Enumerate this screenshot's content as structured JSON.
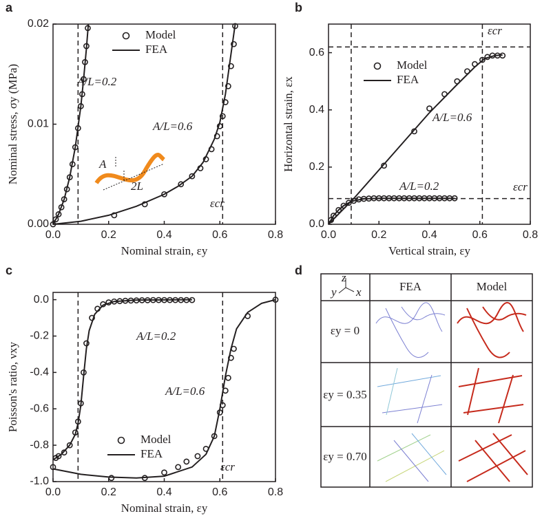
{
  "panels": [
    "a",
    "b",
    "c",
    "d"
  ],
  "chart_data": [
    {
      "type": "line",
      "xlabel": "Nominal strain, εy",
      "ylabel": "Nominal stress, σy (MPa)",
      "xlim": [
        0,
        0.8
      ],
      "xticks": [
        {
          "value": 0,
          "label": "0.0"
        },
        0.2,
        0.4,
        0.6,
        0.8
      ],
      "ylim": [
        0,
        0.02
      ],
      "yticks": [
        {
          "value": 0,
          "label": "0.00"
        },
        0.01,
        0.02
      ],
      "vlines": [
        0.09,
        0.61
      ],
      "hlines": [],
      "ref_labels": [
        "εcr"
      ],
      "annotations": [
        "A/L=0.2",
        "A/L=0.6"
      ],
      "inset_labels": [
        "A",
        "2L"
      ],
      "series": [
        {
          "name": "Model",
          "marker": "circle",
          "color": "#231f20",
          "curves": [
            {
              "x": [
                0,
                0.01,
                0.02,
                0.03,
                0.04,
                0.05,
                0.06,
                0.07,
                0.08,
                0.09,
                0.1,
                0.105,
                0.11,
                0.115,
                0.12,
                0.125
              ],
              "y": [
                0,
                0.0005,
                0.001,
                0.0017,
                0.0025,
                0.0035,
                0.0047,
                0.006,
                0.0077,
                0.0096,
                0.0118,
                0.013,
                0.0145,
                0.0162,
                0.0178,
                0.0196
              ]
            },
            {
              "x": [
                0.22,
                0.33,
                0.4,
                0.46,
                0.5,
                0.53,
                0.55,
                0.57,
                0.59,
                0.6,
                0.61,
                0.62,
                0.63,
                0.64,
                0.65,
                0.655
              ],
              "y": [
                0.0009,
                0.002,
                0.003,
                0.004,
                0.0048,
                0.0056,
                0.0065,
                0.0075,
                0.0088,
                0.0098,
                0.0108,
                0.0122,
                0.0138,
                0.0158,
                0.018,
                0.0198
              ]
            }
          ]
        },
        {
          "name": "FEA",
          "marker": "line",
          "color": "#231f20",
          "curves": [
            {
              "x": [
                0,
                0.02,
                0.04,
                0.06,
                0.08,
                0.1,
                0.11,
                0.12,
                0.127
              ],
              "y": [
                0,
                0.001,
                0.0025,
                0.0047,
                0.0077,
                0.0118,
                0.0145,
                0.0175,
                0.02
              ]
            },
            {
              "x": [
                0,
                0.1,
                0.2,
                0.3,
                0.4,
                0.45,
                0.5,
                0.54,
                0.58,
                0.6,
                0.62,
                0.64,
                0.655
              ],
              "y": [
                0,
                0.0003,
                0.0009,
                0.0018,
                0.003,
                0.0038,
                0.0048,
                0.0062,
                0.0085,
                0.0102,
                0.013,
                0.017,
                0.02
              ]
            }
          ]
        }
      ]
    },
    {
      "type": "line",
      "xlabel": "Vertical strain, εy",
      "ylabel": "Horizontal strain, εx",
      "xlim": [
        0,
        0.8
      ],
      "xticks": [
        {
          "value": 0,
          "label": "0.0"
        },
        0.2,
        0.4,
        0.6,
        0.8
      ],
      "ylim": [
        0,
        0.7
      ],
      "yticks": [
        {
          "value": 0,
          "label": "0.0"
        },
        0.2,
        0.4,
        0.6
      ],
      "vlines": [
        0.09,
        0.61
      ],
      "hlines": [
        0.62,
        0.09
      ],
      "ref_labels": [
        "εcr",
        "εcr"
      ],
      "annotations": [
        "A/L=0.6",
        "A/L=0.2"
      ],
      "series": [
        {
          "name": "Model",
          "marker": "circle",
          "color": "#231f20",
          "curves": [
            {
              "x": [
                0.22,
                0.34,
                0.4,
                0.46,
                0.51,
                0.55,
                0.58,
                0.61,
                0.63,
                0.65,
                0.67,
                0.69
              ],
              "y": [
                0.205,
                0.325,
                0.405,
                0.455,
                0.5,
                0.535,
                0.56,
                0.575,
                0.585,
                0.59,
                0.59,
                0.59
              ]
            },
            {
              "x": [
                0.01,
                0.02,
                0.04,
                0.06,
                0.08,
                0.1,
                0.12,
                0.14,
                0.16,
                0.18,
                0.2,
                0.22,
                0.24,
                0.26,
                0.28,
                0.3,
                0.32,
                0.34,
                0.36,
                0.38,
                0.4,
                0.42,
                0.44,
                0.46,
                0.48,
                0.5
              ],
              "y": [
                0.015,
                0.03,
                0.05,
                0.065,
                0.075,
                0.082,
                0.087,
                0.089,
                0.09,
                0.091,
                0.091,
                0.091,
                0.091,
                0.091,
                0.091,
                0.091,
                0.091,
                0.091,
                0.091,
                0.091,
                0.091,
                0.091,
                0.091,
                0.091,
                0.091,
                0.091
              ]
            }
          ]
        },
        {
          "name": "FEA",
          "marker": "line",
          "color": "#231f20",
          "curves": [
            {
              "x": [
                0,
                0.1,
                0.2,
                0.3,
                0.4,
                0.5,
                0.58,
                0.62,
                0.66,
                0.69
              ],
              "y": [
                0,
                0.09,
                0.19,
                0.29,
                0.39,
                0.48,
                0.55,
                0.58,
                0.59,
                0.592
              ]
            },
            {
              "x": [
                0,
                0.02,
                0.04,
                0.06,
                0.08,
                0.1,
                0.14,
                0.2,
                0.3,
                0.4,
                0.5
              ],
              "y": [
                0,
                0.03,
                0.05,
                0.065,
                0.075,
                0.082,
                0.089,
                0.091,
                0.091,
                0.091,
                0.091
              ]
            }
          ]
        }
      ]
    },
    {
      "type": "line",
      "xlabel": "Nominal strain, εy",
      "ylabel": "Poisson's ratio, νxy",
      "xlim": [
        0,
        0.8
      ],
      "xticks": [
        {
          "value": 0,
          "label": "0.0"
        },
        0.2,
        0.4,
        0.6,
        0.8
      ],
      "ylim": [
        -1,
        0.04
      ],
      "yticks": [
        {
          "value": -1,
          "label": "-1.0"
        },
        -0.8,
        -0.6,
        -0.4,
        -0.2,
        {
          "value": 0,
          "label": "0.0"
        }
      ],
      "vlines": [
        0.09,
        0.61
      ],
      "hlines": [],
      "ref_labels": [
        "εcr"
      ],
      "annotations": [
        "A/L=0.2",
        "A/L=0.6"
      ],
      "series": [
        {
          "name": "Model",
          "marker": "circle",
          "color": "#231f20",
          "curves": [
            {
              "x": [
                0.01,
                0.02,
                0.04,
                0.06,
                0.08,
                0.09,
                0.1,
                0.11,
                0.12,
                0.14,
                0.16,
                0.18,
                0.2,
                0.22,
                0.24,
                0.26,
                0.28,
                0.3,
                0.32,
                0.34,
                0.36,
                0.38,
                0.4,
                0.42,
                0.44,
                0.46,
                0.48,
                0.5
              ],
              "y": [
                -0.87,
                -0.86,
                -0.84,
                -0.8,
                -0.73,
                -0.67,
                -0.57,
                -0.4,
                -0.24,
                -0.1,
                -0.05,
                -0.025,
                -0.015,
                -0.01,
                -0.008,
                -0.006,
                -0.005,
                -0.004,
                -0.003,
                -0.003,
                -0.002,
                -0.002,
                -0.002,
                -0.002,
                -0.002,
                -0.002,
                -0.002,
                -0.002
              ]
            },
            {
              "x": [
                0,
                0.21,
                0.33,
                0.4,
                0.45,
                0.48,
                0.52,
                0.55,
                0.58,
                0.6,
                0.61,
                0.62,
                0.63,
                0.64,
                0.65,
                0.7,
                0.8
              ],
              "y": [
                -0.92,
                -0.98,
                -0.98,
                -0.95,
                -0.92,
                -0.89,
                -0.86,
                -0.82,
                -0.75,
                -0.62,
                -0.58,
                -0.5,
                -0.43,
                -0.32,
                -0.27,
                -0.09,
                0
              ]
            }
          ]
        },
        {
          "name": "FEA",
          "marker": "line",
          "color": "#231f20",
          "curves": [
            {
              "x": [
                0,
                0.03,
                0.06,
                0.08,
                0.09,
                0.1,
                0.11,
                0.12,
                0.13,
                0.15,
                0.18,
                0.22,
                0.3,
                0.5
              ],
              "y": [
                -0.88,
                -0.85,
                -0.8,
                -0.74,
                -0.68,
                -0.58,
                -0.42,
                -0.27,
                -0.17,
                -0.08,
                -0.03,
                -0.01,
                -0.002,
                0
              ]
            },
            {
              "x": [
                0,
                0.1,
                0.2,
                0.3,
                0.4,
                0.5,
                0.55,
                0.58,
                0.6,
                0.62,
                0.64,
                0.66,
                0.7,
                0.75,
                0.8
              ],
              "y": [
                -0.93,
                -0.96,
                -0.975,
                -0.98,
                -0.97,
                -0.92,
                -0.85,
                -0.75,
                -0.6,
                -0.42,
                -0.27,
                -0.16,
                -0.07,
                -0.02,
                0
              ]
            }
          ]
        }
      ]
    }
  ],
  "table": {
    "axes_labels": [
      "z",
      "y",
      "x"
    ],
    "header": [
      "FEA",
      "Model"
    ],
    "rows": [
      "εy = 0",
      "εy = 0.35",
      "εy = 0.70"
    ]
  }
}
